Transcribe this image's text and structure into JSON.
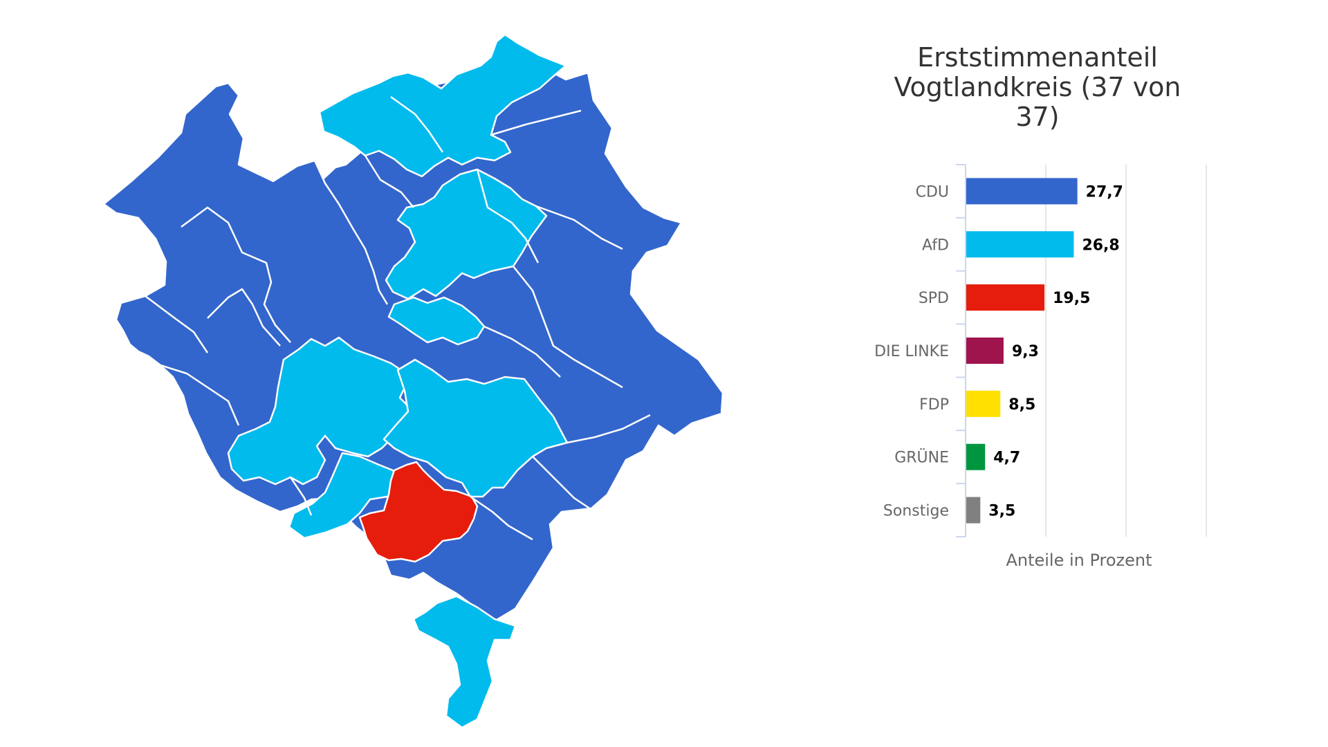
{
  "chart_data": {
    "type": "bar",
    "orientation": "horizontal",
    "title": "Erststimmenanteil Vogtlandkreis (37 von 37)",
    "title_lines": [
      "Erststimmenanteil",
      "Vogtlandkreis (37 von",
      "37)"
    ],
    "categories": [
      "CDU",
      "AfD",
      "SPD",
      "DIE LINKE",
      "FDP",
      "GRÜNE",
      "Sonstige"
    ],
    "values": [
      27.7,
      26.8,
      19.5,
      9.3,
      8.5,
      4.7,
      3.5
    ],
    "value_labels": [
      "27,7",
      "26,8",
      "19,5",
      "9,3",
      "8,5",
      "4,7",
      "3,5"
    ],
    "colors": [
      "#3366cc",
      "#00bbec",
      "#e61c0c",
      "#a0144e",
      "#ffe000",
      "#00963f",
      "#808080"
    ],
    "xlabel": "Anteile in Prozent",
    "ylabel": "",
    "xlim": [
      0,
      60
    ],
    "grid": true
  },
  "map": {
    "party_colors": {
      "CDU": "#3366cc",
      "AfD": "#00bbec",
      "SPD": "#e61c0c"
    }
  }
}
